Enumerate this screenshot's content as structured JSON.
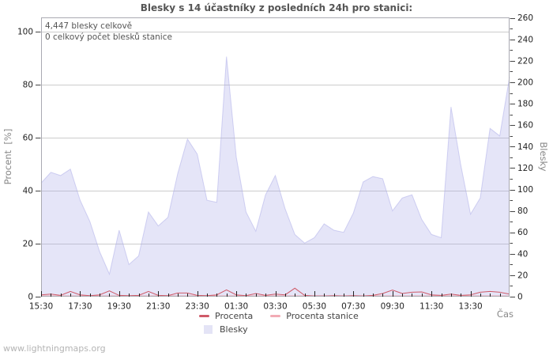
{
  "page": {
    "title": "Blesky s 14 účastníky z posledních 24h pro stanici:",
    "watermark": "www.lightningmaps.org"
  },
  "annotations": {
    "total_strikes": "4,447 blesky celkově",
    "station_strikes": "0 celkový počet blesků stanice"
  },
  "axes": {
    "left_title": "Procent  [%]",
    "right_title": "Blesky",
    "x_title": "Čas"
  },
  "legend": {
    "procenta": {
      "label": "Procenta",
      "color": "#cf5a68"
    },
    "procenta_stanice": {
      "label": "Procenta stanice",
      "color": "#f2abb5"
    },
    "blesky": {
      "label": "Blesky",
      "color": "#e4e4f6"
    }
  },
  "chart_data": {
    "type": "area",
    "title": "Blesky s 14 účastníky z posledních 24h pro stanici:",
    "x_axis": {
      "title": "Čas",
      "start": "15:30",
      "end": "15:30",
      "interval_minutes": 30,
      "tick_labels": [
        "15:30",
        "17:30",
        "19:30",
        "21:30",
        "23:30",
        "01:30",
        "03:30",
        "05:30",
        "07:30",
        "09:30",
        "11:30",
        "13:30"
      ]
    },
    "left_axis": {
      "title": "Procent [%]",
      "min": 0,
      "max": 100,
      "tick_step": 20
    },
    "right_axis": {
      "title": "Blesky",
      "min": 0,
      "max": 260,
      "tick_step": 20,
      "minor_tick_step": 10
    },
    "grid": "horizontal-only",
    "legend_position": "bottom-center",
    "series": [
      {
        "name": "Blesky",
        "type": "area",
        "axis": "right",
        "fill_color": "rgba(170,170,232,0.30)",
        "edge_color": "rgba(170,170,232,0.50)",
        "values": [
          106,
          116,
          113,
          119,
          90,
          70,
          42,
          21,
          62,
          30,
          38,
          79,
          66,
          74,
          115,
          147,
          133,
          90,
          88,
          224,
          130,
          79,
          61,
          95,
          113,
          82,
          58,
          50,
          55,
          68,
          62,
          60,
          78,
          107,
          112,
          110,
          80,
          92,
          95,
          72,
          58,
          55,
          177,
          123,
          77,
          92,
          157,
          150,
          205
        ]
      },
      {
        "name": "Procenta",
        "type": "line",
        "axis": "left",
        "color": "#cf5a68",
        "values": [
          0.5,
          0.8,
          0.3,
          1.8,
          0.5,
          0.2,
          0.5,
          2.0,
          0.3,
          0.2,
          0.3,
          1.8,
          0.3,
          0.2,
          1.2,
          1.2,
          0.3,
          0.2,
          0.5,
          2.4,
          0.5,
          0.2,
          1.0,
          0.3,
          0.8,
          0.5,
          3.0,
          0.3,
          0.1,
          0.1,
          0.2,
          0.1,
          0.2,
          0.1,
          0.3,
          1.0,
          2.3,
          1.0,
          1.5,
          1.6,
          0.5,
          0.3,
          0.8,
          0.3,
          0.5,
          1.5,
          1.8,
          1.5,
          0.8
        ]
      },
      {
        "name": "Procenta stanice",
        "type": "line",
        "axis": "left",
        "color": "#f2abb5",
        "values": [
          0,
          0,
          0,
          0,
          0,
          0,
          0,
          0,
          0,
          0,
          0,
          0,
          0,
          0,
          0,
          0,
          0,
          0,
          0,
          0,
          0,
          0,
          0,
          0,
          0,
          0,
          0,
          0,
          0,
          0,
          0,
          0,
          0,
          0,
          0,
          0,
          0,
          0,
          0,
          0,
          0,
          0,
          0,
          0,
          0,
          0,
          0,
          0,
          0
        ]
      }
    ]
  }
}
